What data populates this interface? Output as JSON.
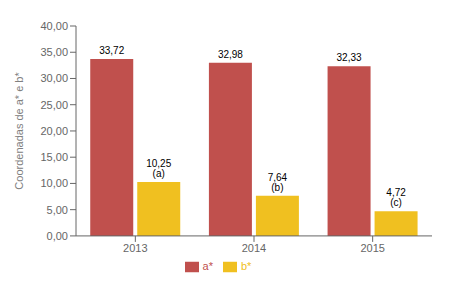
{
  "chart_data": {
    "type": "bar",
    "categories": [
      "2013",
      "2014",
      "2015"
    ],
    "series": [
      {
        "name": "a*",
        "color": "#c0504d",
        "values": [
          33.72,
          32.98,
          32.33
        ],
        "value_labels": [
          "33,72",
          "32,98",
          "32,33"
        ]
      },
      {
        "name": "b*",
        "color": "#f0c020",
        "values": [
          10.25,
          7.64,
          4.72
        ],
        "value_labels": [
          "10,25 (a)",
          "7,64 (b)",
          "4,72 (c)"
        ]
      }
    ],
    "ylabel": "Coordenadas de a* e b*",
    "ylim": [
      0,
      40
    ],
    "yticks": [
      {
        "value": 0.0,
        "label": "0,00"
      },
      {
        "value": 5.0,
        "label": "5,00"
      },
      {
        "value": 10.0,
        "label": "10,00"
      },
      {
        "value": 15.0,
        "label": "15,00"
      },
      {
        "value": 20.0,
        "label": "20,00"
      },
      {
        "value": 25.0,
        "label": "25,00"
      },
      {
        "value": 30.0,
        "label": "30,00"
      },
      {
        "value": 35.0,
        "label": "35,00"
      },
      {
        "value": 40.0,
        "label": "40,00"
      }
    ],
    "legend": "bottom",
    "data_labels": true,
    "grid": false
  }
}
